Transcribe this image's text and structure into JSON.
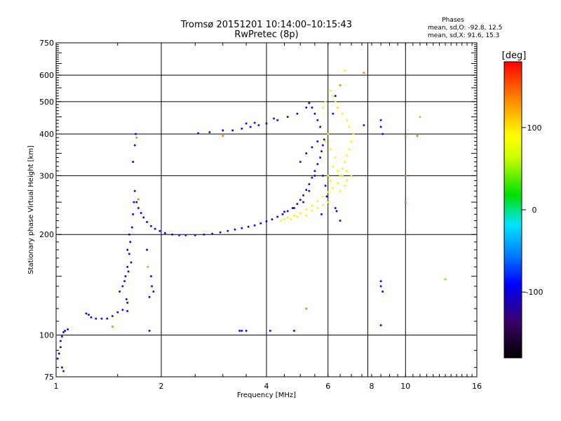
{
  "chart_data": {
    "type": "scatter",
    "title_line1": "Tromsø 20151201 10:14:00–10:15:43",
    "title_line2": "RwPretec (8p)",
    "legend": {
      "heading": "Phases",
      "line1": "mean, sd,O: -92.8, 12.5",
      "line2": "mean, sd,X:  91.6, 15.3"
    },
    "xlabel": "Frequency [MHz]",
    "ylabel": "Stationary phase Virtual Height [km]",
    "x_scale": "log",
    "y_scale": "log",
    "xlim": [
      1,
      16
    ],
    "ylim": [
      75,
      750
    ],
    "x_ticks": [
      1,
      2,
      4,
      6,
      8,
      10,
      16
    ],
    "y_ticks": [
      75,
      100,
      200,
      300,
      400,
      500,
      600,
      750
    ],
    "x_gridlines": [
      2,
      4,
      6,
      7.8,
      10
    ],
    "y_gridlines": [
      100,
      200,
      300,
      400,
      500,
      600
    ],
    "colorbar": {
      "label": "[deg]",
      "range": [
        -180,
        180
      ],
      "ticks": [
        100,
        0,
        -100
      ]
    },
    "series": [
      {
        "name": "O",
        "phase_deg": -95,
        "points": [
          [
            1.01,
            85
          ],
          [
            1.02,
            88
          ],
          [
            1.03,
            92
          ],
          [
            1.03,
            96
          ],
          [
            1.04,
            99
          ],
          [
            1.05,
            102
          ],
          [
            1.06,
            103
          ],
          [
            1.08,
            104
          ],
          [
            1.04,
            80
          ],
          [
            1.05,
            78
          ],
          [
            1.22,
            116
          ],
          [
            1.24,
            115
          ],
          [
            1.26,
            113
          ],
          [
            1.3,
            112
          ],
          [
            1.35,
            112
          ],
          [
            1.4,
            112
          ],
          [
            1.45,
            114
          ],
          [
            1.5,
            117
          ],
          [
            1.55,
            119
          ],
          [
            1.6,
            118
          ],
          [
            1.52,
            135
          ],
          [
            1.55,
            140
          ],
          [
            1.58,
            150
          ],
          [
            1.6,
            160
          ],
          [
            1.62,
            175
          ],
          [
            1.63,
            190
          ],
          [
            1.65,
            210
          ],
          [
            1.66,
            230
          ],
          [
            1.67,
            250
          ],
          [
            1.68,
            270
          ],
          [
            1.62,
            200
          ],
          [
            1.6,
            180
          ],
          [
            1.64,
            165
          ],
          [
            1.61,
            155
          ],
          [
            1.57,
            145
          ],
          [
            1.59,
            128
          ],
          [
            1.6,
            125
          ],
          [
            1.66,
            330
          ],
          [
            1.68,
            370
          ],
          [
            1.69,
            400
          ],
          [
            1.7,
            250
          ],
          [
            1.72,
            240
          ],
          [
            1.75,
            232
          ],
          [
            1.78,
            225
          ],
          [
            1.82,
            218
          ],
          [
            1.87,
            212
          ],
          [
            1.92,
            208
          ],
          [
            1.98,
            205
          ],
          [
            2.05,
            202
          ],
          [
            2.15,
            200
          ],
          [
            2.25,
            199
          ],
          [
            2.35,
            199
          ],
          [
            2.5,
            199
          ],
          [
            2.65,
            200
          ],
          [
            2.8,
            201
          ],
          [
            2.95,
            203
          ],
          [
            3.1,
            205
          ],
          [
            3.25,
            207
          ],
          [
            3.4,
            209
          ],
          [
            3.55,
            211
          ],
          [
            3.7,
            213
          ],
          [
            3.85,
            216
          ],
          [
            4.0,
            219
          ],
          [
            4.15,
            222
          ],
          [
            4.3,
            226
          ],
          [
            4.45,
            230
          ],
          [
            4.6,
            235
          ],
          [
            4.75,
            240
          ],
          [
            4.9,
            247
          ],
          [
            5.0,
            254
          ],
          [
            5.1,
            262
          ],
          [
            5.2,
            272
          ],
          [
            5.3,
            283
          ],
          [
            5.4,
            296
          ],
          [
            5.5,
            310
          ],
          [
            5.6,
            325
          ],
          [
            5.7,
            340
          ],
          [
            5.75,
            355
          ],
          [
            5.8,
            370
          ],
          [
            5.85,
            385
          ],
          [
            5.7,
            420
          ],
          [
            5.6,
            440
          ],
          [
            5.5,
            460
          ],
          [
            5.4,
            480
          ],
          [
            5.3,
            495
          ],
          [
            5.2,
            480
          ],
          [
            4.9,
            460
          ],
          [
            4.6,
            450
          ],
          [
            4.3,
            440
          ],
          [
            4.0,
            430
          ],
          [
            3.8,
            425
          ],
          [
            3.6,
            420
          ],
          [
            3.4,
            415
          ],
          [
            3.2,
            410
          ],
          [
            3.0,
            410
          ],
          [
            2.75,
            405
          ],
          [
            2.55,
            402
          ],
          [
            3.5,
            430
          ],
          [
            3.7,
            432
          ],
          [
            4.2,
            445
          ],
          [
            5.0,
            330
          ],
          [
            5.2,
            350
          ],
          [
            5.4,
            365
          ],
          [
            5.6,
            380
          ],
          [
            5.5,
            300
          ],
          [
            5.3,
            270
          ],
          [
            5.1,
            250
          ],
          [
            4.8,
            240
          ],
          [
            4.5,
            234
          ],
          [
            5.8,
            300
          ],
          [
            5.9,
            280
          ],
          [
            5.95,
            260
          ],
          [
            5.75,
            230
          ],
          [
            6.2,
            460
          ],
          [
            6.3,
            520
          ],
          [
            6.4,
            480
          ],
          [
            8.5,
            440
          ],
          [
            8.5,
            420
          ],
          [
            8.6,
            400
          ],
          [
            8.5,
            145
          ],
          [
            8.5,
            140
          ],
          [
            8.6,
            135
          ],
          [
            8.5,
            107
          ],
          [
            3.35,
            103
          ],
          [
            3.4,
            103
          ],
          [
            3.5,
            103
          ],
          [
            4.1,
            103
          ],
          [
            4.8,
            103
          ],
          [
            1.85,
            103
          ],
          [
            1.85,
            130
          ],
          [
            1.87,
            150
          ],
          [
            1.88,
            140
          ],
          [
            1.9,
            135
          ],
          [
            1.82,
            180
          ],
          [
            7.6,
            425
          ],
          [
            6.3,
            240
          ],
          [
            6.35,
            235
          ],
          [
            6.5,
            220
          ]
        ]
      },
      {
        "name": "X",
        "phase_deg": 95,
        "points": [
          [
            4.5,
            222
          ],
          [
            4.6,
            225
          ],
          [
            4.8,
            228
          ],
          [
            5.0,
            232
          ],
          [
            5.2,
            238
          ],
          [
            5.4,
            244
          ],
          [
            5.6,
            252
          ],
          [
            5.8,
            260
          ],
          [
            6.0,
            268
          ],
          [
            6.2,
            276
          ],
          [
            6.4,
            285
          ],
          [
            6.5,
            300
          ],
          [
            6.6,
            315
          ],
          [
            6.7,
            330
          ],
          [
            6.8,
            345
          ],
          [
            6.9,
            360
          ],
          [
            7.0,
            380
          ],
          [
            7.1,
            400
          ],
          [
            6.9,
            420
          ],
          [
            6.8,
            440
          ],
          [
            6.6,
            460
          ],
          [
            6.4,
            480
          ],
          [
            6.3,
            500
          ],
          [
            6.2,
            520
          ],
          [
            6.1,
            540
          ],
          [
            6.0,
            400
          ],
          [
            5.9,
            380
          ],
          [
            6.1,
            360
          ],
          [
            6.3,
            340
          ],
          [
            6.2,
            320
          ],
          [
            6.0,
            300
          ],
          [
            6.1,
            290
          ],
          [
            6.4,
            310
          ],
          [
            6.6,
            300
          ],
          [
            6.8,
            290
          ],
          [
            5.6,
            240
          ],
          [
            5.8,
            245
          ],
          [
            6.0,
            250
          ],
          [
            5.4,
            236
          ],
          [
            5.2,
            228
          ],
          [
            4.9,
            226
          ],
          [
            4.7,
            222
          ],
          [
            4.4,
            220
          ],
          [
            6.7,
            620
          ],
          [
            5.8,
            480
          ],
          [
            5.9,
            500
          ],
          [
            6.5,
            270
          ],
          [
            6.7,
            280
          ],
          [
            7.0,
            300
          ],
          [
            6.8,
            310
          ]
        ]
      },
      {
        "name": "",
        "phase_deg": 140,
        "points": [
          [
            7.6,
            610
          ],
          [
            6.5,
            560
          ],
          [
            1.72,
            255
          ],
          [
            1.7,
            390
          ],
          [
            3.0,
            395
          ],
          [
            10.0,
            395
          ],
          [
            10.8,
            395
          ],
          [
            10.0,
            250
          ],
          [
            10.0,
            300
          ],
          [
            5.2,
            120
          ],
          [
            1.45,
            106
          ]
        ]
      },
      {
        "name": "",
        "phase_deg": 40,
        "points": [
          [
            13.0,
            147
          ],
          [
            1.83,
            160
          ],
          [
            11.0,
            450
          ]
        ]
      }
    ]
  }
}
